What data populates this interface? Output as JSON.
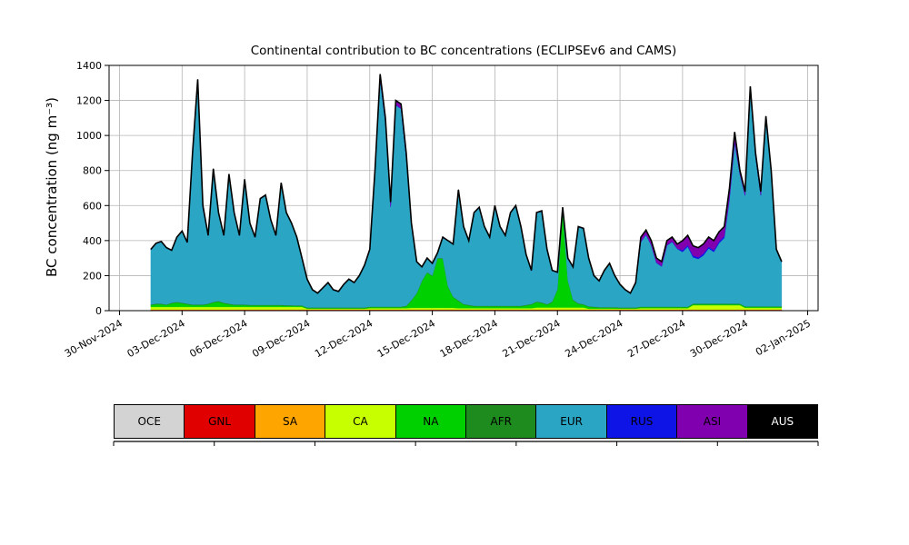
{
  "title": "Continental contribution to BC concentrations (ECLIPSEv6 and CAMS)",
  "axes": {
    "ylabel": "BC concentration (ng m⁻³)",
    "yticks": [
      0,
      200,
      400,
      600,
      800,
      1000,
      1200,
      1400
    ],
    "xtick_labels": [
      "30-Nov-2024",
      "03-Dec-2024",
      "06-Dec-2024",
      "09-Dec-2024",
      "12-Dec-2024",
      "15-Dec-2024",
      "18-Dec-2024",
      "21-Dec-2024",
      "24-Dec-2024",
      "27-Dec-2024",
      "30-Dec-2024",
      "02-Jan-2025"
    ],
    "xtick_days": [
      0,
      3,
      6,
      9,
      12,
      15,
      18,
      21,
      24,
      27,
      30,
      33
    ],
    "grid_color": "#b4b4b4"
  },
  "chart_data": {
    "type": "area",
    "stacked": true,
    "title": "Continental contribution to BC concentrations (ECLIPSEv6 and CAMS)",
    "xlabel": "",
    "ylabel": "BC concentration (ng m⁻³)",
    "xlim_days": [
      -0.5,
      33.5
    ],
    "ylim": [
      0,
      1400
    ],
    "grid": true,
    "legend_position": "bottom",
    "x_start": 1.5,
    "x_step": 0.25,
    "x_unit": "days since 30-Nov-2024",
    "total": [
      350,
      385,
      395,
      360,
      345,
      420,
      455,
      390,
      900,
      1320,
      600,
      430,
      810,
      560,
      430,
      780,
      560,
      430,
      750,
      500,
      420,
      640,
      660,
      520,
      430,
      730,
      560,
      500,
      420,
      300,
      180,
      120,
      100,
      130,
      160,
      120,
      110,
      150,
      180,
      160,
      200,
      260,
      350,
      800,
      1350,
      1100,
      620,
      1200,
      1180,
      900,
      500,
      280,
      250,
      300,
      270,
      330,
      420,
      400,
      380,
      690,
      480,
      400,
      560,
      590,
      480,
      420,
      600,
      480,
      430,
      560,
      600,
      480,
      320,
      230,
      560,
      570,
      350,
      230,
      220,
      590,
      300,
      250,
      480,
      470,
      300,
      200,
      170,
      230,
      270,
      200,
      150,
      120,
      100,
      160,
      420,
      460,
      400,
      300,
      280,
      400,
      420,
      380,
      400,
      430,
      370,
      360,
      380,
      420,
      400,
      450,
      480,
      700,
      1020,
      800,
      680,
      1280,
      900,
      680,
      1110,
      800,
      350,
      280
    ],
    "total_line": {
      "color": "#000000",
      "width": 1.6
    },
    "series": [
      {
        "name": "OCE",
        "color": "#d3d3d3",
        "text_color": "#000000",
        "constant": 3
      },
      {
        "name": "GNL",
        "color": "#e00000",
        "text_color": "#000000",
        "constant": 2
      },
      {
        "name": "SA",
        "color": "#ffa500",
        "text_color": "#000000",
        "constant": 1
      },
      {
        "name": "CA",
        "color": "#c8ff00",
        "text_color": "#000000",
        "values": [
          15,
          15,
          15,
          15,
          15,
          15,
          15,
          15,
          15,
          15,
          15,
          15,
          15,
          15,
          15,
          15,
          15,
          15,
          15,
          15,
          15,
          15,
          15,
          15,
          15,
          15,
          15,
          15,
          15,
          15,
          5,
          5,
          5,
          5,
          5,
          5,
          5,
          5,
          5,
          5,
          5,
          5,
          8,
          8,
          8,
          8,
          8,
          8,
          8,
          8,
          10,
          10,
          10,
          10,
          10,
          10,
          10,
          10,
          10,
          8,
          8,
          8,
          8,
          8,
          8,
          8,
          8,
          8,
          8,
          8,
          8,
          8,
          8,
          8,
          12,
          12,
          12,
          12,
          12,
          12,
          12,
          12,
          12,
          12,
          5,
          5,
          5,
          5,
          5,
          5,
          5,
          5,
          5,
          5,
          8,
          8,
          8,
          8,
          8,
          8,
          8,
          8,
          8,
          8,
          25,
          25,
          25,
          25,
          25,
          25,
          25,
          25,
          25,
          25,
          10,
          10,
          10,
          10,
          10,
          10,
          10,
          10
        ]
      },
      {
        "name": "NA",
        "color": "#00d000",
        "text_color": "#000000",
        "values": [
          10,
          15,
          15,
          10,
          20,
          25,
          20,
          15,
          10,
          10,
          10,
          15,
          25,
          30,
          20,
          15,
          10,
          10,
          10,
          8,
          8,
          8,
          8,
          8,
          8,
          8,
          6,
          6,
          5,
          5,
          3,
          3,
          3,
          3,
          3,
          3,
          3,
          3,
          3,
          3,
          3,
          3,
          5,
          5,
          5,
          5,
          5,
          5,
          5,
          10,
          40,
          80,
          150,
          200,
          180,
          280,
          280,
          120,
          60,
          40,
          20,
          15,
          10,
          10,
          10,
          10,
          10,
          10,
          10,
          10,
          10,
          10,
          15,
          20,
          30,
          25,
          15,
          30,
          100,
          550,
          150,
          40,
          20,
          15,
          10,
          8,
          5,
          5,
          5,
          5,
          3,
          3,
          3,
          3,
          5,
          5,
          5,
          5,
          5,
          5,
          5,
          5,
          5,
          5,
          5,
          5,
          5,
          5,
          5,
          5,
          5,
          5,
          5,
          5,
          5,
          5,
          5,
          5,
          5,
          5,
          5,
          5
        ]
      },
      {
        "name": "AFR",
        "color": "#1e8b1e",
        "text_color": "#000000",
        "constant": 4
      },
      {
        "name": "EUR",
        "color": "#2aa5c4",
        "text_color": "#000000",
        "residual": true
      },
      {
        "name": "RUS",
        "color": "#0f14e6",
        "text_color": "#000000",
        "constant": 3,
        "overrides": [
          [
            102,
            112,
            10
          ]
        ]
      },
      {
        "name": "ASI",
        "color": "#8000b0",
        "text_color": "#000000",
        "constant": 0,
        "overrides": [
          [
            9,
            10,
            15
          ],
          [
            44,
            49,
            25
          ],
          [
            94,
            101,
            25
          ],
          [
            102,
            112,
            55
          ],
          [
            113,
            118,
            20
          ]
        ]
      },
      {
        "name": "AUS",
        "color": "#000000",
        "text_color": "#ffffff",
        "constant": 0
      }
    ]
  }
}
